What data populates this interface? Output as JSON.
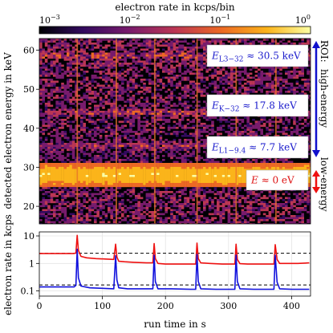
{
  "chart_data": [
    {
      "type": "heatmap",
      "colorbar": {
        "label": "electron rate in kcps/bin",
        "scale": "log",
        "ticks": [
          {
            "value": 0.001,
            "base": "10",
            "exp": "−3"
          },
          {
            "value": 0.01,
            "base": "10",
            "exp": "−2"
          },
          {
            "value": 0.1,
            "base": "10",
            "exp": "−1"
          },
          {
            "value": 1,
            "base": "10",
            "exp": "0"
          }
        ],
        "colormap": [
          "#000004",
          "#320a5e",
          "#781b6c",
          "#bb3654",
          "#ec6824",
          "#fbb41a",
          "#fcffa4"
        ]
      },
      "ylabel": "detected electron energy in keV",
      "ylim": [
        15.5,
        63
      ],
      "yticks": [
        20,
        30,
        40,
        50,
        60
      ],
      "xlim": [
        0,
        430
      ],
      "bands": [
        {
          "energy_keV": 7.7,
          "detected_keV": 35.5,
          "label_sym": "E",
          "label_sub": "L1−9.4",
          "label_rest": " ≈ 7.7 keV",
          "color": "#1a1acc"
        },
        {
          "energy_keV": 17.8,
          "detected_keV": 44.0,
          "label_sym": "E",
          "label_sub": "K−32",
          "label_rest": " ≈ 17.8 keV",
          "color": "#1a1acc"
        },
        {
          "energy_keV": 30.5,
          "detected_keV": 58.5,
          "label_sym": "E",
          "label_sub": "L3−32",
          "label_rest": " ≈ 30.5 keV",
          "color": "#1a1acc"
        },
        {
          "energy_keV": 0,
          "detected_keV": 28.0,
          "label_sym": "E",
          "label_sub": "",
          "label_rest": " ≈ 0 eV",
          "color": "#dd1111"
        }
      ],
      "vertical_streaks_s": [
        60,
        122,
        183,
        250,
        312,
        375
      ],
      "roi": {
        "title": "ROI:",
        "high": "high-energy",
        "low": "low-energy",
        "high_color": "#1010cc",
        "low_color": "#ee1111"
      }
    },
    {
      "type": "line",
      "xlabel": "run time in s",
      "ylabel": "electron rate in kcps",
      "xlim": [
        0,
        430
      ],
      "xticks": [
        0,
        100,
        200,
        300,
        400
      ],
      "ylim": [
        0.065,
        14
      ],
      "yscale": "log",
      "yticks": [
        {
          "value": 0.1,
          "label": "0.1"
        },
        {
          "value": 1,
          "label": "1"
        },
        {
          "value": 10,
          "label": "10"
        }
      ],
      "grid": true,
      "hlines": [
        {
          "y": 2.35,
          "style": "dashed",
          "color": "#000000"
        },
        {
          "y": 0.165,
          "style": "dashed",
          "color": "#000000"
        }
      ],
      "series": [
        {
          "color": "#ee1111",
          "x": [
            0,
            55,
            58,
            60,
            62,
            66,
            75,
            90,
            105,
            118,
            121,
            123,
            126,
            135,
            150,
            170,
            180,
            182,
            184,
            188,
            200,
            220,
            240,
            248,
            250,
            252,
            256,
            270,
            290,
            305,
            310,
            312,
            314,
            318,
            330,
            350,
            365,
            372,
            374,
            377,
            381,
            395,
            410,
            428
          ],
          "y": [
            2.3,
            2.3,
            2.4,
            10.5,
            3.0,
            1.8,
            1.6,
            1.5,
            1.45,
            1.4,
            5.0,
            1.7,
            1.2,
            1.15,
            1.1,
            1.05,
            1.05,
            5.3,
            1.5,
            1.0,
            0.95,
            0.95,
            0.95,
            0.95,
            5.5,
            1.5,
            1.05,
            1.0,
            0.95,
            0.95,
            0.95,
            5.0,
            1.4,
            0.98,
            0.95,
            0.95,
            0.95,
            0.95,
            4.8,
            1.4,
            1.0,
            1.0,
            1.0,
            1.05
          ]
        },
        {
          "color": "#1010dd",
          "x": [
            0,
            55,
            58,
            60,
            62,
            66,
            80,
            100,
            118,
            121,
            123,
            126,
            140,
            170,
            180,
            182,
            184,
            188,
            210,
            240,
            248,
            250,
            252,
            256,
            280,
            305,
            310,
            312,
            314,
            318,
            340,
            365,
            372,
            374,
            377,
            381,
            400,
            428
          ],
          "y": [
            0.14,
            0.14,
            0.16,
            3.3,
            0.3,
            0.15,
            0.13,
            0.125,
            0.12,
            1.9,
            0.25,
            0.13,
            0.12,
            0.12,
            0.12,
            2.0,
            0.22,
            0.12,
            0.12,
            0.115,
            0.115,
            2.1,
            0.22,
            0.12,
            0.115,
            0.115,
            0.115,
            2.0,
            0.22,
            0.12,
            0.115,
            0.115,
            0.115,
            2.0,
            0.21,
            0.12,
            0.115,
            0.115
          ]
        }
      ]
    }
  ]
}
